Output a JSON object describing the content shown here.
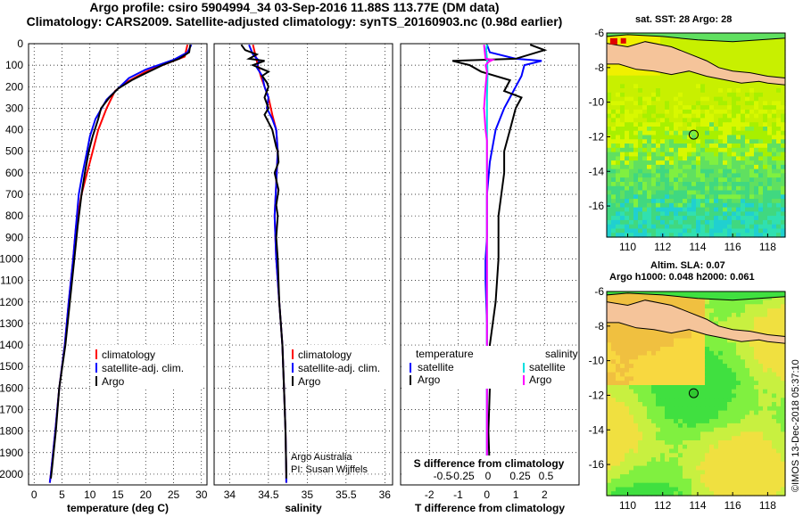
{
  "title_line1": "Argo profile: csiro 5904994_34 03-Sep-2016 11.88S 113.77E (DM data)",
  "title_line2": "Climatology: CARS2009. Satellite-adjusted climatology: synTS_20160903.nc (0.98d earlier)",
  "sst_title": "sat. SST: 28 Argo: 28",
  "sla_title_1": "Altim. SLA: 0.07",
  "sla_title_2": "Argo h1000: 0.048 h2000: 0.061",
  "credit": "©IMOS 13-Dec-2018 05:37:10",
  "colors": {
    "climatology": "#ff0000",
    "satellite": "#0000ff",
    "argo": "#000000",
    "sat_salinity": "#00e0e0",
    "argo_salinity": "#ff00ff",
    "land": "#f5c49a"
  },
  "chart_data": [
    {
      "type": "line",
      "name": "temperature",
      "xlabel": "temperature (deg C)",
      "ylabel": "",
      "xlim": [
        -1,
        31
      ],
      "ylim": [
        2050,
        0
      ],
      "xticks": [
        0,
        5,
        10,
        15,
        20,
        25,
        30
      ],
      "yticks": [
        0,
        100,
        200,
        300,
        400,
        500,
        600,
        700,
        800,
        900,
        1000,
        1100,
        1200,
        1300,
        1400,
        1500,
        1600,
        1700,
        1800,
        1900,
        2000
      ],
      "grid": true,
      "legend": [
        "climatology",
        "satellite-adj. clim.",
        "Argo"
      ],
      "series": [
        {
          "name": "climatology",
          "color": "#ff0000",
          "points": [
            [
              27.5,
              5
            ],
            [
              27,
              60
            ],
            [
              25,
              80
            ],
            [
              20,
              130
            ],
            [
              16.5,
              180
            ],
            [
              14.5,
              220
            ],
            [
              13,
              300
            ],
            [
              11.5,
              400
            ],
            [
              10.5,
              500
            ],
            [
              9.5,
              600
            ],
            [
              8.5,
              700
            ],
            [
              7.5,
              850
            ],
            [
              7,
              1000
            ],
            [
              6.2,
              1200
            ],
            [
              5.5,
              1400
            ],
            [
              4.5,
              1600
            ],
            [
              3.8,
              1800
            ],
            [
              3,
              2000
            ],
            [
              2.8,
              2040
            ]
          ]
        },
        {
          "name": "satellite-adj. clim.",
          "color": "#0000ff",
          "points": [
            [
              28.2,
              5
            ],
            [
              27.5,
              40
            ],
            [
              25,
              75
            ],
            [
              20,
              120
            ],
            [
              17,
              160
            ],
            [
              15,
              210
            ],
            [
              13,
              260
            ],
            [
              11,
              350
            ],
            [
              10,
              430
            ],
            [
              9.5,
              500
            ],
            [
              8.7,
              600
            ],
            [
              8,
              700
            ],
            [
              7.5,
              850
            ],
            [
              7,
              1000
            ],
            [
              6.2,
              1200
            ],
            [
              5.5,
              1400
            ],
            [
              4.5,
              1600
            ],
            [
              3.8,
              1800
            ],
            [
              3,
              2000
            ],
            [
              2.8,
              2040
            ]
          ]
        },
        {
          "name": "Argo",
          "color": "#000000",
          "points": [
            [
              28,
              5
            ],
            [
              27.8,
              40
            ],
            [
              26,
              70
            ],
            [
              23,
              100
            ],
            [
              19,
              150
            ],
            [
              17.5,
              170
            ],
            [
              15,
              210
            ],
            [
              13.5,
              250
            ],
            [
              12,
              300
            ],
            [
              11.5,
              350
            ],
            [
              10.5,
              430
            ],
            [
              9.8,
              500
            ],
            [
              9.1,
              600
            ],
            [
              8.5,
              700
            ],
            [
              7.8,
              850
            ],
            [
              7.2,
              1000
            ],
            [
              6.4,
              1200
            ],
            [
              5.6,
              1400
            ],
            [
              4.5,
              1600
            ],
            [
              3.9,
              1800
            ],
            [
              3.1,
              2000
            ],
            [
              3,
              2020
            ]
          ]
        }
      ]
    },
    {
      "type": "line",
      "name": "salinity",
      "xlabel": "salinity",
      "ylabel": "",
      "xlim": [
        33.8,
        36.1
      ],
      "ylim": [
        2050,
        0
      ],
      "xticks": [
        34,
        34.5,
        35,
        35.5,
        36
      ],
      "grid": true,
      "legend": [
        "climatology",
        "satellite-adj. clim.",
        "Argo"
      ],
      "annotation": [
        "Argo Australia",
        "PI: Susan Wijffels"
      ],
      "series": [
        {
          "name": "climatology",
          "color": "#ff0000",
          "points": [
            [
              34.3,
              5
            ],
            [
              34.35,
              80
            ],
            [
              34.4,
              150
            ],
            [
              34.5,
              250
            ],
            [
              34.55,
              330
            ],
            [
              34.6,
              400
            ],
            [
              34.62,
              500
            ],
            [
              34.6,
              650
            ],
            [
              34.58,
              800
            ],
            [
              34.6,
              1000
            ],
            [
              34.64,
              1200
            ],
            [
              34.68,
              1400
            ],
            [
              34.7,
              1600
            ],
            [
              34.72,
              1800
            ],
            [
              34.73,
              2000
            ],
            [
              34.73,
              2040
            ]
          ]
        },
        {
          "name": "satellite-adj. clim.",
          "color": "#0000ff",
          "points": [
            [
              34.25,
              5
            ],
            [
              34.3,
              50
            ],
            [
              34.38,
              80
            ],
            [
              34.35,
              110
            ],
            [
              34.42,
              150
            ],
            [
              34.45,
              200
            ],
            [
              34.5,
              250
            ],
            [
              34.48,
              300
            ],
            [
              34.55,
              350
            ],
            [
              34.6,
              400
            ],
            [
              34.62,
              500
            ],
            [
              34.6,
              650
            ],
            [
              34.58,
              800
            ],
            [
              34.6,
              1000
            ],
            [
              34.64,
              1200
            ],
            [
              34.68,
              1400
            ],
            [
              34.7,
              1600
            ],
            [
              34.72,
              1800
            ],
            [
              34.73,
              2000
            ],
            [
              34.73,
              2040
            ]
          ]
        },
        {
          "name": "Argo",
          "color": "#000000",
          "points": [
            [
              34.15,
              5
            ],
            [
              34.2,
              30
            ],
            [
              34.35,
              50
            ],
            [
              34.25,
              70
            ],
            [
              34.45,
              80
            ],
            [
              34.3,
              100
            ],
            [
              34.5,
              130
            ],
            [
              34.42,
              150
            ],
            [
              34.48,
              180
            ],
            [
              34.5,
              200
            ],
            [
              34.45,
              250
            ],
            [
              34.5,
              300
            ],
            [
              34.45,
              330
            ],
            [
              34.55,
              400
            ],
            [
              34.6,
              480
            ],
            [
              34.62,
              500
            ],
            [
              34.63,
              550
            ],
            [
              34.58,
              600
            ],
            [
              34.63,
              680
            ],
            [
              34.6,
              750
            ],
            [
              34.62,
              800
            ],
            [
              34.6,
              900
            ],
            [
              34.62,
              1000
            ],
            [
              34.64,
              1200
            ],
            [
              34.68,
              1400
            ],
            [
              34.7,
              1600
            ],
            [
              34.72,
              1800
            ],
            [
              34.73,
              2000
            ],
            [
              34.73,
              2020
            ]
          ]
        }
      ]
    },
    {
      "type": "line",
      "name": "difference",
      "xlabel": "T difference from climatology",
      "subtitle": "S difference from climatology",
      "ylabel": "",
      "xlim": [
        -3,
        3.2
      ],
      "ylim": [
        2050,
        0
      ],
      "xticks": [
        -2,
        -1,
        0,
        1,
        2
      ],
      "sticks": [
        -0.5,
        -0.25,
        0,
        0.25,
        0.5
      ],
      "grid": true,
      "legend_left_title": "temperature",
      "legend_right_title": "salinity",
      "legend": [
        "satellite",
        "Argo",
        "satellite",
        "Argo"
      ],
      "series": [
        {
          "name": "T satellite",
          "color": "#0000ff",
          "points": [
            [
              0,
              5
            ],
            [
              0.1,
              40
            ],
            [
              1,
              70
            ],
            [
              1.9,
              80
            ],
            [
              1.3,
              100
            ],
            [
              1.2,
              150
            ],
            [
              1,
              200
            ],
            [
              0.8,
              250
            ],
            [
              0.6,
              300
            ],
            [
              0.3,
              400
            ],
            [
              0.1,
              550
            ],
            [
              0,
              700
            ],
            [
              0,
              900
            ],
            [
              -0.05,
              1000
            ],
            [
              -0.05,
              1100
            ],
            [
              0,
              1300
            ],
            [
              0,
              1600
            ],
            [
              0,
              1800
            ],
            [
              0,
              2000
            ],
            [
              0,
              2040
            ]
          ]
        },
        {
          "name": "T Argo",
          "color": "#000000",
          "points": [
            [
              1.5,
              5
            ],
            [
              2,
              30
            ],
            [
              1,
              70
            ],
            [
              -1.2,
              80
            ],
            [
              -0.6,
              100
            ],
            [
              -0.2,
              130
            ],
            [
              0.8,
              170
            ],
            [
              0.6,
              220
            ],
            [
              1.2,
              250
            ],
            [
              1,
              300
            ],
            [
              0.8,
              400
            ],
            [
              0.6,
              500
            ],
            [
              0.6,
              600
            ],
            [
              0.5,
              700
            ],
            [
              0.4,
              800
            ],
            [
              0.4,
              1000
            ],
            [
              0.3,
              1200
            ],
            [
              0.1,
              1400
            ],
            [
              0.1,
              1600
            ],
            [
              0.05,
              1800
            ],
            [
              0.1,
              2000
            ],
            [
              0.1,
              2020
            ]
          ]
        },
        {
          "name": "S satellite",
          "color": "#00e0e0",
          "points": [
            [
              0,
              5
            ],
            [
              -0.03,
              30
            ],
            [
              0.01,
              80
            ],
            [
              0.02,
              150
            ],
            [
              0,
              250
            ],
            [
              0,
              300
            ],
            [
              0,
              500
            ],
            [
              0,
              700
            ],
            [
              0,
              1000
            ],
            [
              0,
              1300
            ],
            [
              0,
              1600
            ],
            [
              0,
              1800
            ],
            [
              0,
              2000
            ],
            [
              0,
              2040
            ]
          ]
        },
        {
          "name": "S Argo",
          "color": "#ff00ff",
          "points": [
            [
              -0.1,
              5
            ],
            [
              -0.05,
              70
            ],
            [
              0.2,
              75
            ],
            [
              0.05,
              85
            ],
            [
              -0.05,
              100
            ],
            [
              0,
              130
            ],
            [
              -0.05,
              200
            ],
            [
              -0.1,
              300
            ],
            [
              -0.05,
              400
            ],
            [
              0,
              450
            ],
            [
              0,
              500
            ],
            [
              0,
              600
            ],
            [
              0,
              700
            ],
            [
              0,
              1000
            ],
            [
              0,
              1300
            ],
            [
              0,
              1400
            ],
            [
              0,
              1500
            ],
            [
              0,
              1600
            ],
            [
              0,
              1800
            ],
            [
              0,
              2000
            ],
            [
              0,
              2020
            ]
          ]
        }
      ]
    },
    {
      "type": "heatmap",
      "name": "sst-map",
      "title": "sat. SST: 28 Argo: 28",
      "xlim": [
        108.8,
        119
      ],
      "ylim": [
        -17.8,
        -6
      ],
      "xticks": [
        110,
        112,
        114,
        116,
        118
      ],
      "yticks": [
        -6,
        -8,
        -10,
        -12,
        -14,
        -16
      ],
      "marker": {
        "lon": 113.77,
        "lat": -11.88
      }
    },
    {
      "type": "heatmap",
      "name": "sla-map",
      "title": "Altim. SLA: 0.07",
      "subtitle": "Argo h1000: 0.048 h2000: 0.061",
      "xlim": [
        108.8,
        119
      ],
      "ylim": [
        -17.8,
        -6
      ],
      "xticks": [
        110,
        112,
        114,
        116,
        118
      ],
      "yticks": [
        -6,
        -8,
        -10,
        -12,
        -14,
        -16
      ],
      "marker": {
        "lon": 113.77,
        "lat": -11.88
      }
    }
  ]
}
